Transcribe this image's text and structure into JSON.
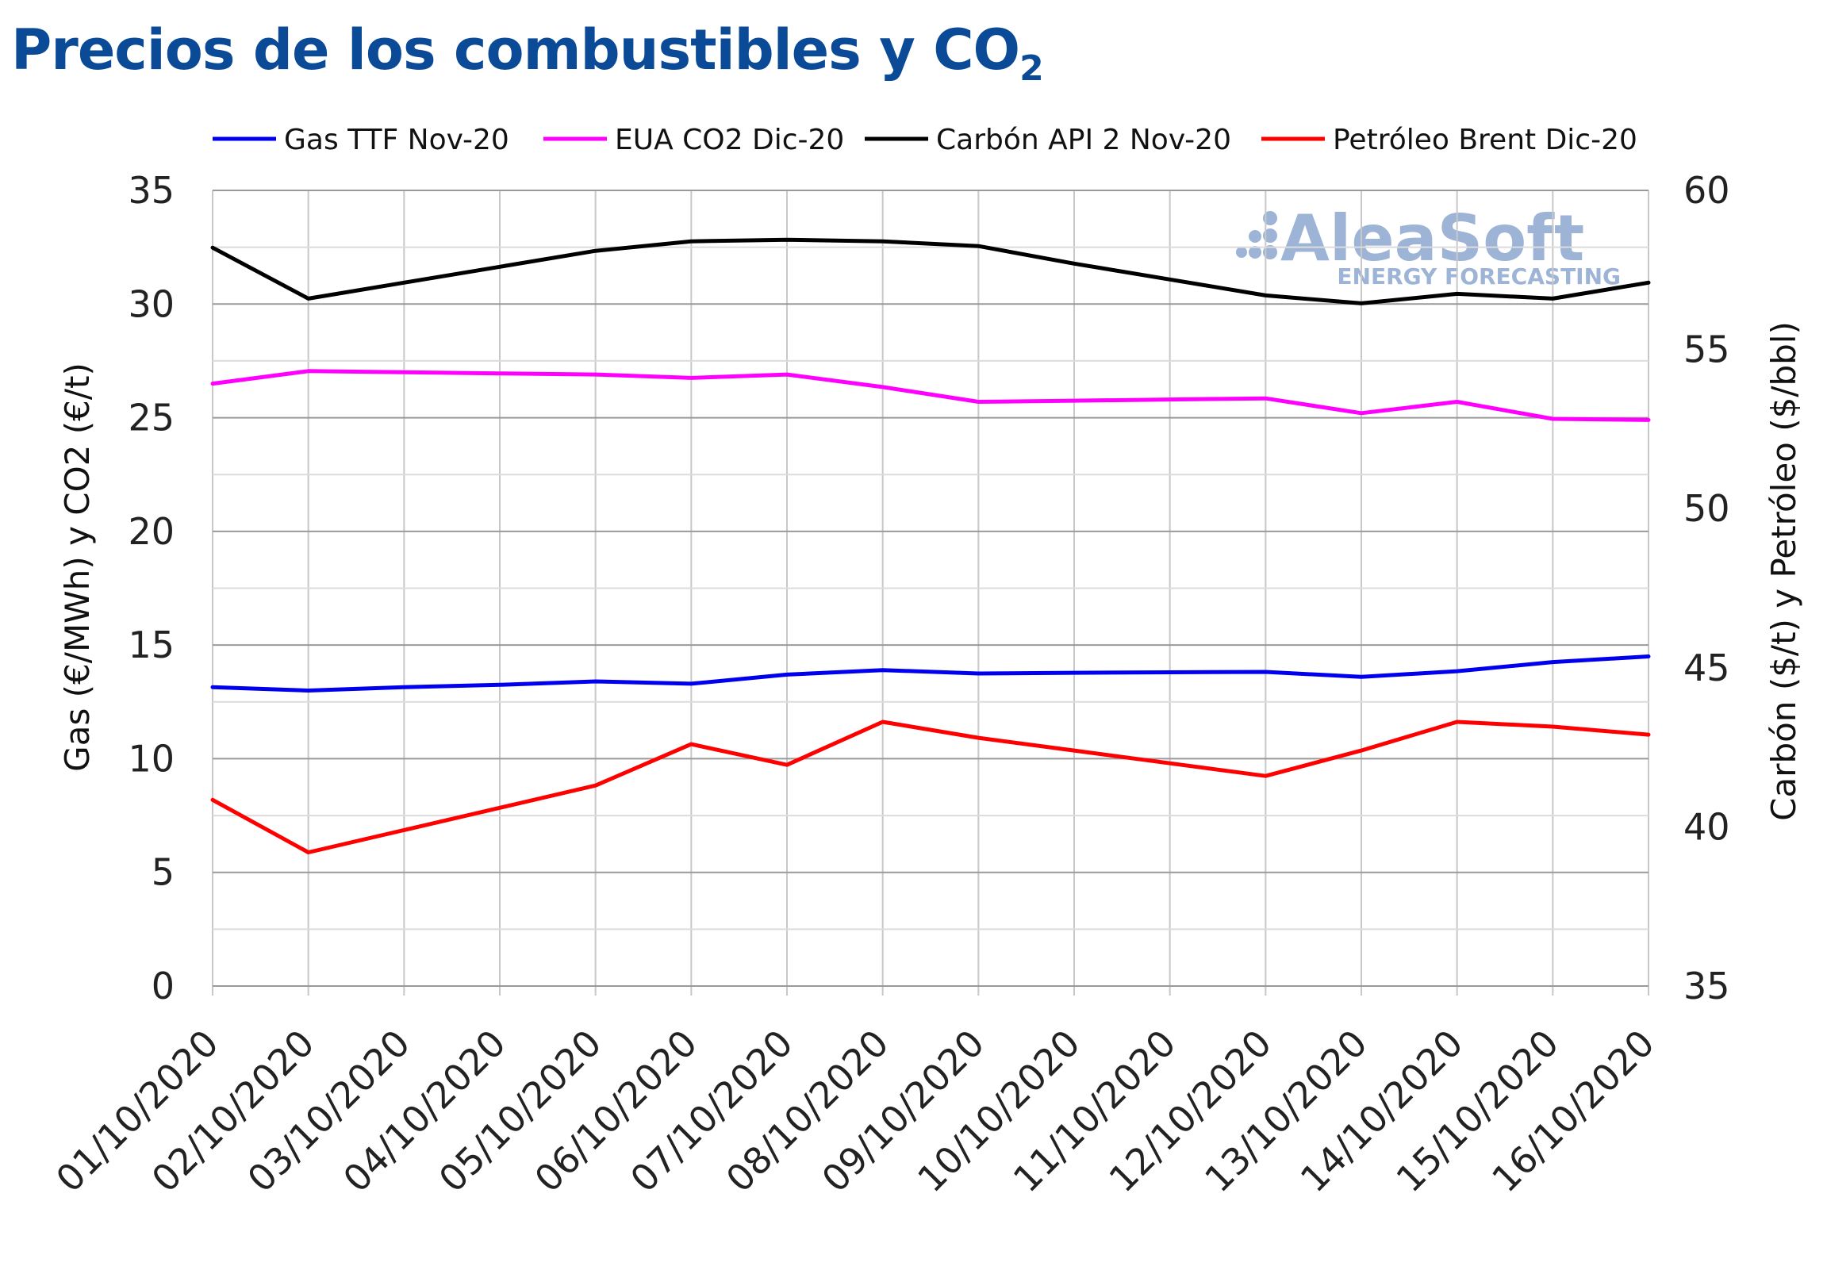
{
  "header": {
    "title": "Precios de los combustibles y CO",
    "title_subscript": "2"
  },
  "watermark": {
    "brand": "AleaSoft",
    "tagline": "ENERGY FORECASTING"
  },
  "chart_data": {
    "type": "line",
    "title": "Precios de los combustibles y CO2",
    "categories": [
      "01/10/2020",
      "02/10/2020",
      "03/10/2020",
      "04/10/2020",
      "05/10/2020",
      "06/10/2020",
      "07/10/2020",
      "08/10/2020",
      "09/10/2020",
      "10/10/2020",
      "11/10/2020",
      "12/10/2020",
      "13/10/2020",
      "14/10/2020",
      "15/10/2020",
      "16/10/2020"
    ],
    "ylabel": "Gas (€/MWh) y CO2 (€/t)",
    "y2label": "Carbón ($/t) y Petróleo ($/bbl)",
    "ylim": [
      0,
      35
    ],
    "y2lim": [
      35,
      60
    ],
    "yticks": [
      0,
      5,
      10,
      15,
      20,
      25,
      30,
      35
    ],
    "y2ticks": [
      35,
      40,
      45,
      50,
      55,
      60
    ],
    "grid": true,
    "legend_position": "top",
    "series": [
      {
        "name": "Gas TTF Nov-20",
        "axis": "left",
        "color": "#0000ee",
        "values": [
          13.15,
          13.0,
          13.15,
          13.25,
          13.4,
          13.3,
          13.7,
          13.9,
          13.75,
          13.78,
          13.8,
          13.82,
          13.6,
          13.85,
          14.25,
          14.5
        ]
      },
      {
        "name": "EUA CO2 Dic-20",
        "axis": "left",
        "color": "#ff00ff",
        "values": [
          26.5,
          27.05,
          27.0,
          26.95,
          26.9,
          26.75,
          26.9,
          26.35,
          25.7,
          25.75,
          25.8,
          25.85,
          25.2,
          25.7,
          24.95,
          24.9
        ]
      },
      {
        "name": "Carbón API 2 Nov-20",
        "axis": "right",
        "color": "#000000",
        "values": [
          58.2,
          56.6,
          57.1,
          57.6,
          58.1,
          58.4,
          58.45,
          58.4,
          58.25,
          57.7,
          57.2,
          56.7,
          56.45,
          56.75,
          56.6,
          57.1
        ]
      },
      {
        "name": "Petróleo Brent Dic-20",
        "axis": "right",
        "color": "#ff0000",
        "values": [
          40.85,
          39.2,
          39.9,
          40.6,
          41.3,
          42.6,
          41.95,
          43.3,
          42.8,
          42.4,
          42.0,
          41.6,
          42.4,
          43.3,
          43.15,
          42.9
        ]
      }
    ]
  }
}
